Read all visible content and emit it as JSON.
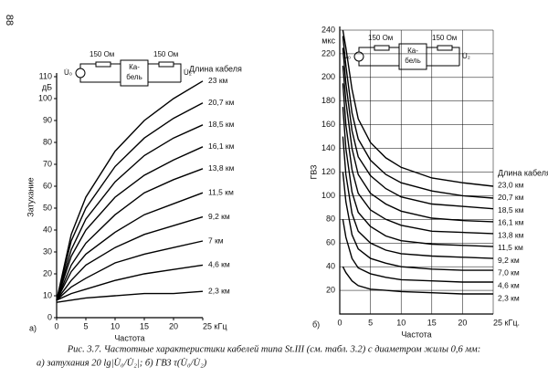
{
  "page_number": "88",
  "caption": [
    "Рис. 3.7. Частотные характеристики кабелей типа St.III (см. табл. 3.2) с диаметром жилы 0,6 мм:",
    "а) затухания 20 lg|U̇₀/U̇₂|; б) ГВЗ τ(U̇₀/U̇₂)"
  ],
  "chart_data": [
    {
      "type": "line",
      "panel": "а)",
      "x_label": "Частота",
      "y_label": "Затухание",
      "y_unit": "дБ",
      "legend_title": "Длина кабеля",
      "inset": [
        "150 Ом",
        "150 Ом",
        "Ка-",
        "бель",
        "U̇₀",
        "U̇₂"
      ],
      "xlim": [
        0,
        25
      ],
      "xticks": [
        0,
        5,
        10,
        15,
        20,
        {
          "value": 25,
          "label": "25 кГц"
        }
      ],
      "ylim": [
        0,
        110
      ],
      "yticks": [
        0,
        10,
        20,
        30,
        40,
        50,
        60,
        70,
        80,
        90,
        100,
        110
      ],
      "grid": false,
      "x": [
        0,
        2.5,
        5,
        10,
        15,
        20,
        25
      ],
      "series": [
        {
          "name": "23 км",
          "color": "#000000",
          "values": [
            8,
            38,
            55,
            76,
            90,
            100,
            108
          ]
        },
        {
          "name": "20,7 км",
          "color": "#000000",
          "values": [
            8,
            35,
            50,
            69,
            82,
            91,
            98
          ]
        },
        {
          "name": "18,5 км",
          "color": "#000000",
          "values": [
            8,
            31,
            45,
            62,
            74,
            82,
            88
          ]
        },
        {
          "name": "16,1 км",
          "color": "#000000",
          "values": [
            8,
            28,
            40,
            55,
            65,
            72,
            78
          ]
        },
        {
          "name": "13,8 км",
          "color": "#000000",
          "values": [
            8,
            24,
            34,
            47,
            57,
            63,
            68
          ]
        },
        {
          "name": "11,5 км",
          "color": "#000000",
          "values": [
            8,
            21,
            29,
            39,
            47,
            52,
            57
          ]
        },
        {
          "name": "9,2 км",
          "color": "#000000",
          "values": [
            8,
            17,
            24,
            32,
            38,
            42,
            46
          ]
        },
        {
          "name": "7 км",
          "color": "#000000",
          "values": [
            8,
            14,
            18,
            25,
            29,
            32,
            35
          ]
        },
        {
          "name": "4,6 км",
          "color": "#000000",
          "values": [
            8,
            11,
            13,
            17,
            20,
            22,
            24
          ]
        },
        {
          "name": "2,3 км",
          "color": "#000000",
          "values": [
            7,
            8,
            9,
            10,
            11,
            11,
            12
          ]
        }
      ]
    },
    {
      "type": "line",
      "panel": "б)",
      "x_label": "Частота",
      "y_label": "ГВЗ",
      "y_unit": "мкс",
      "legend_title": "Длина кабеля",
      "inset": [
        "150 Ом",
        "150 Ом",
        "Ка-",
        "бель",
        "U̇₀",
        "U̇₂"
      ],
      "xlim": [
        0,
        25
      ],
      "xticks": [
        0,
        5,
        10,
        15,
        20,
        {
          "value": 25,
          "label": "25 кГц."
        }
      ],
      "ylim": [
        0,
        240
      ],
      "yticks": [
        20,
        40,
        60,
        80,
        100,
        120,
        140,
        160,
        180,
        200,
        220,
        240
      ],
      "grid": true,
      "x": [
        0.5,
        1,
        2,
        3,
        5,
        7.5,
        10,
        15,
        20,
        25
      ],
      "series": [
        {
          "name": "23,0 км",
          "color": "#000000",
          "values": [
            240,
            225,
            190,
            165,
            145,
            132,
            124,
            115,
            111,
            108
          ]
        },
        {
          "name": "20,7 км",
          "color": "#000000",
          "values": [
            235,
            210,
            170,
            148,
            130,
            118,
            111,
            104,
            100,
            98
          ]
        },
        {
          "name": "18,5 км",
          "color": "#000000",
          "values": [
            225,
            195,
            155,
            133,
            117,
            106,
            99,
            93,
            91,
            89
          ]
        },
        {
          "name": "16,1 км",
          "color": "#000000",
          "values": [
            210,
            180,
            140,
            118,
            102,
            93,
            87,
            81,
            79,
            78
          ]
        },
        {
          "name": "13,8 км",
          "color": "#000000",
          "values": [
            195,
            160,
            122,
            102,
            88,
            80,
            75,
            70,
            69,
            68
          ]
        },
        {
          "name": "11,5 км",
          "color": "#000000",
          "values": [
            175,
            140,
            103,
            86,
            74,
            66,
            62,
            59,
            58,
            57
          ]
        },
        {
          "name": "9,2 км",
          "color": "#000000",
          "values": [
            150,
            118,
            85,
            70,
            60,
            54,
            51,
            49,
            48,
            47
          ]
        },
        {
          "name": "7,0 км",
          "color": "#000000",
          "values": [
            120,
            95,
            67,
            55,
            47,
            43,
            40,
            38,
            37,
            37
          ]
        },
        {
          "name": "4,6 км",
          "color": "#000000",
          "values": [
            80,
            65,
            47,
            39,
            34,
            31,
            29,
            28,
            27,
            27
          ]
        },
        {
          "name": "2,3 км",
          "color": "#000000",
          "values": [
            40,
            35,
            28,
            24,
            21,
            20,
            19,
            18,
            17,
            17
          ]
        }
      ]
    }
  ]
}
